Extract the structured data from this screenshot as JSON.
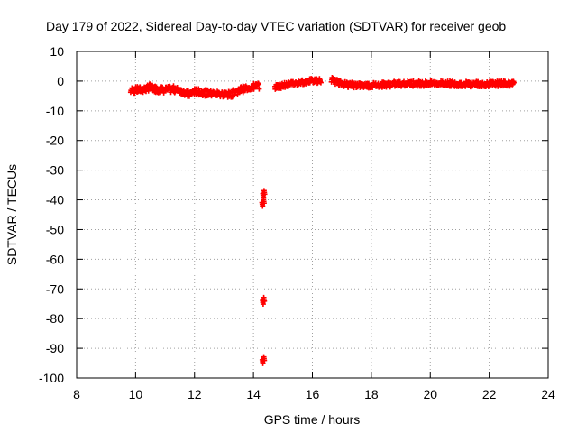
{
  "chart_data": {
    "type": "scatter",
    "title": "Day 179 of 2022, Sidereal Day-to-day VTEC variation (SDTVAR) for receiver geob",
    "xlabel": "GPS time / hours",
    "ylabel": "SDTVAR / TECUs",
    "xlim": [
      8,
      24
    ],
    "ylim": [
      -100,
      10
    ],
    "xticks": [
      8,
      10,
      12,
      14,
      16,
      18,
      20,
      22,
      24
    ],
    "yticks": [
      10,
      0,
      -10,
      -20,
      -30,
      -40,
      -50,
      -60,
      -70,
      -80,
      -90,
      -100
    ],
    "grid": true,
    "marker": "plus",
    "series_color": "#ff0000",
    "series": [
      {
        "name": "SDTVAR",
        "trend": [
          [
            9.85,
            -3.2
          ],
          [
            10.0,
            -3.0
          ],
          [
            10.3,
            -2.8
          ],
          [
            10.5,
            -2.0
          ],
          [
            10.7,
            -2.7
          ],
          [
            11.0,
            -3.0
          ],
          [
            11.3,
            -2.7
          ],
          [
            11.6,
            -3.5
          ],
          [
            11.8,
            -4.5
          ],
          [
            12.0,
            -3.5
          ],
          [
            12.3,
            -3.8
          ],
          [
            12.6,
            -4.2
          ],
          [
            12.9,
            -4.3
          ],
          [
            13.2,
            -4.6
          ],
          [
            13.4,
            -3.6
          ],
          [
            13.6,
            -2.8
          ],
          [
            13.8,
            -2.2
          ],
          [
            14.05,
            -1.8
          ],
          [
            14.2,
            -1.5
          ]
        ],
        "trend2": [
          [
            14.75,
            -2.0
          ],
          [
            14.9,
            -1.7
          ],
          [
            15.1,
            -1.2
          ],
          [
            15.4,
            -0.8
          ],
          [
            15.7,
            -0.3
          ],
          [
            15.9,
            0.0
          ],
          [
            16.1,
            0.1
          ],
          [
            16.3,
            0.1
          ]
        ],
        "trend3": [
          [
            16.65,
            0.5
          ],
          [
            16.9,
            -0.6
          ],
          [
            17.2,
            -1.2
          ],
          [
            17.6,
            -1.4
          ],
          [
            18.0,
            -1.4
          ],
          [
            18.3,
            -1.2
          ],
          [
            18.6,
            -1.1
          ],
          [
            19.0,
            -0.9
          ],
          [
            19.4,
            -0.8
          ],
          [
            19.8,
            -0.8
          ],
          [
            20.2,
            -0.8
          ],
          [
            20.5,
            -0.8
          ],
          [
            20.8,
            -0.9
          ],
          [
            21.2,
            -1.0
          ],
          [
            21.6,
            -1.0
          ],
          [
            22.0,
            -1.0
          ],
          [
            22.4,
            -0.8
          ],
          [
            22.85,
            -0.9
          ]
        ],
        "outliers": [
          [
            14.33,
            -38.5
          ],
          [
            14.37,
            -37.5
          ],
          [
            14.3,
            -41.5
          ],
          [
            14.35,
            -40.5
          ],
          [
            14.32,
            -74.5
          ],
          [
            14.36,
            -73.5
          ],
          [
            14.31,
            -94.5
          ],
          [
            14.36,
            -93.5
          ]
        ]
      }
    ]
  }
}
